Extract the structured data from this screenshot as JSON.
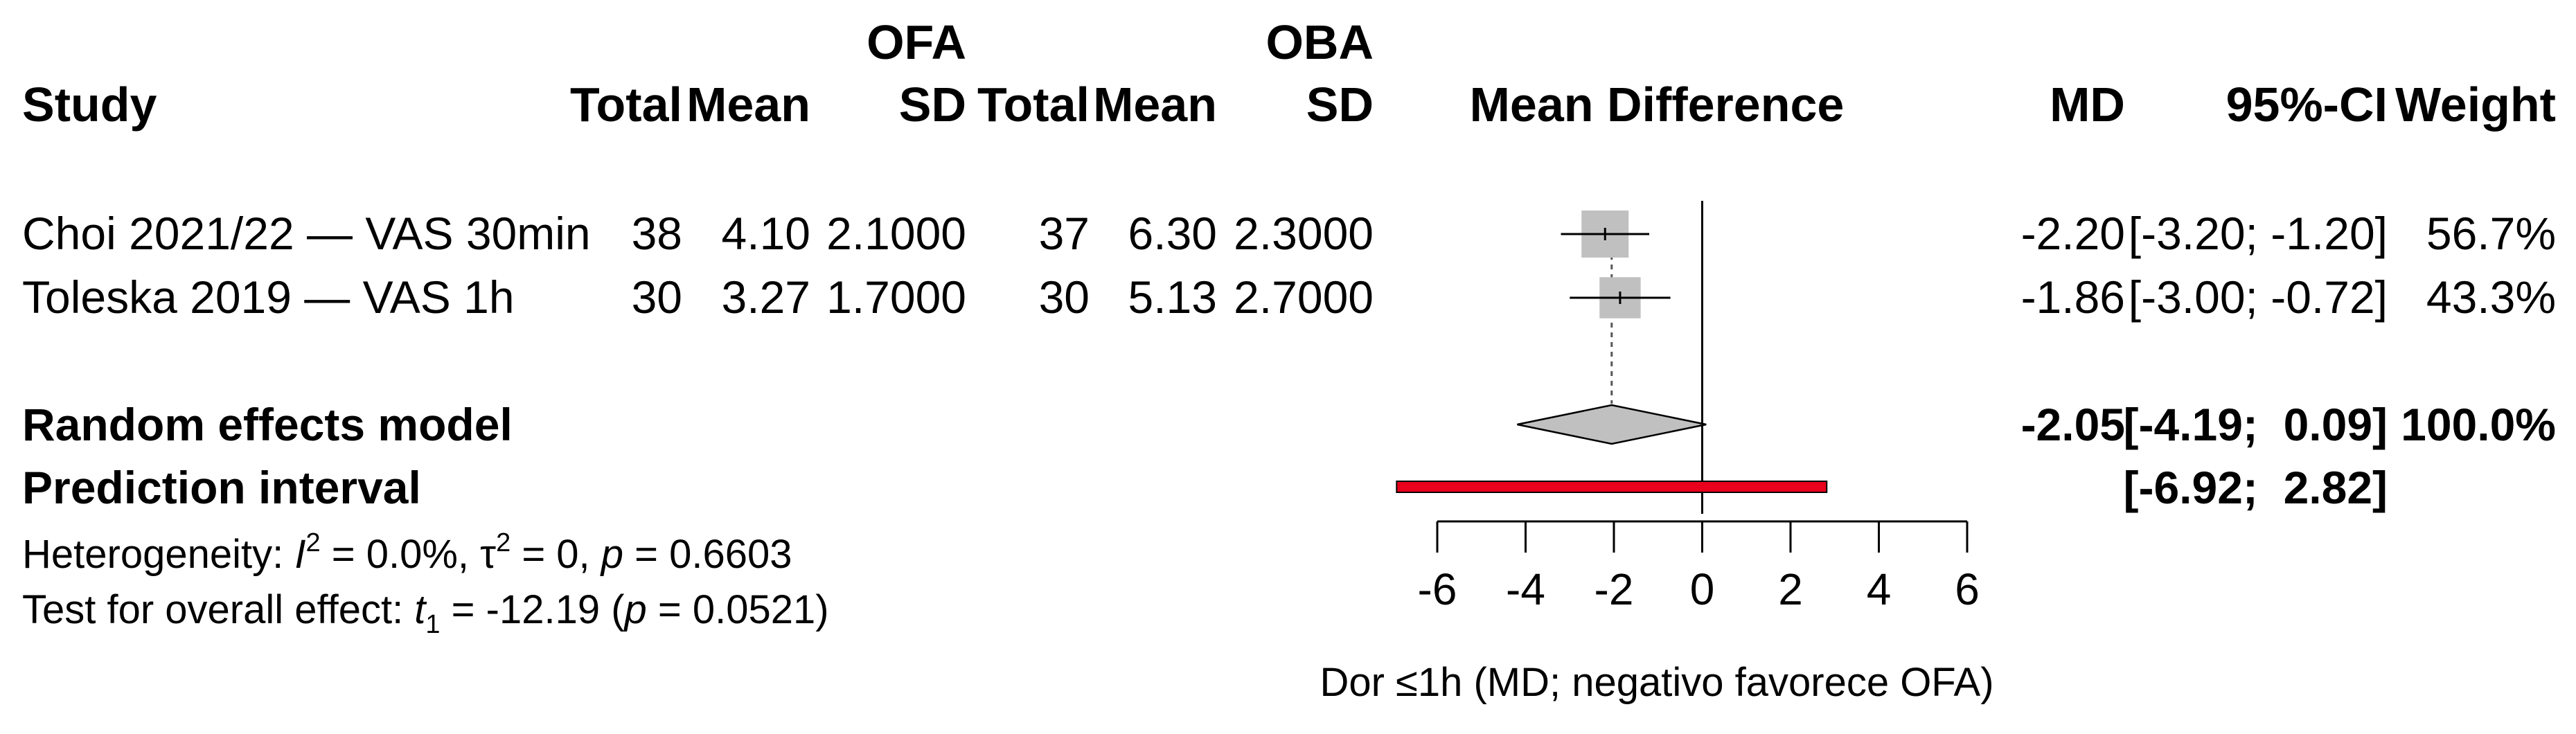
{
  "chart_data": {
    "type": "forest",
    "group_labels": {
      "experimental": "OFA",
      "control": "OBA"
    },
    "columns": {
      "study": "Study",
      "total_e": "Total",
      "mean_e": "Mean",
      "sd_e": "SD",
      "total_c": "Total",
      "mean_c": "Mean",
      "sd_c": "SD",
      "plot": "Mean Difference",
      "md": "MD",
      "ci": "95%-CI",
      "weight": "Weight"
    },
    "studies": [
      {
        "name": "Choi 2021/22 — VAS 30min",
        "total_e": "38",
        "mean_e": "4.10",
        "sd_e": "2.1000",
        "total_c": "37",
        "mean_c": "6.30",
        "sd_c": "2.3000",
        "md_text": "-2.20",
        "ci_text": "[-3.20; -1.20]",
        "weight_text": "56.7%",
        "md": -2.2,
        "lower": -3.2,
        "upper": -1.2,
        "weight": 56.7
      },
      {
        "name": "Toleska 2019 — VAS 1h",
        "total_e": "30",
        "mean_e": "3.27",
        "sd_e": "1.7000",
        "total_c": "30",
        "mean_c": "5.13",
        "sd_c": "2.7000",
        "md_text": "-1.86",
        "ci_text": "[-3.00; -0.72]",
        "weight_text": "43.3%",
        "md": -1.86,
        "lower": -3.0,
        "upper": -0.72,
        "weight": 43.3
      }
    ],
    "random_effects": {
      "label": "Random effects model",
      "md_text": "-2.05",
      "ci_text": "[-4.19;  0.09]",
      "weight_text": "100.0%",
      "md": -2.05,
      "lower": -4.19,
      "upper": 0.09
    },
    "prediction_interval": {
      "label": "Prediction interval",
      "ci_text": "[-6.92;  2.82]",
      "lower": -6.92,
      "upper": 2.82
    },
    "heterogeneity": {
      "prefix": "Heterogeneity: ",
      "i2": "I",
      "i2_value": " = 0.0%, ",
      "tau2": "τ",
      "tau2_value": " = 0, ",
      "p": "p",
      "p_value": " = 0.6603"
    },
    "overall_effect": {
      "prefix": "Test for overall effect: ",
      "t": "t",
      "t_sub": "1",
      "t_value": " = -12.19 (",
      "p": "p",
      "p_value": " = 0.0521)"
    },
    "x_axis": {
      "ticks": [
        -6,
        -4,
        -2,
        0,
        2,
        4,
        6
      ],
      "tick_labels": [
        "-6",
        "-4",
        "-2",
        "0",
        "2",
        "4",
        "6"
      ],
      "xlim": [
        -6,
        6
      ],
      "label": "Dor ≤1h (MD; negativo favorece OFA)"
    },
    "colors": {
      "prediction": "#e8001c",
      "square": "#c0c0c0",
      "diamond": "#c0c0c0"
    }
  }
}
